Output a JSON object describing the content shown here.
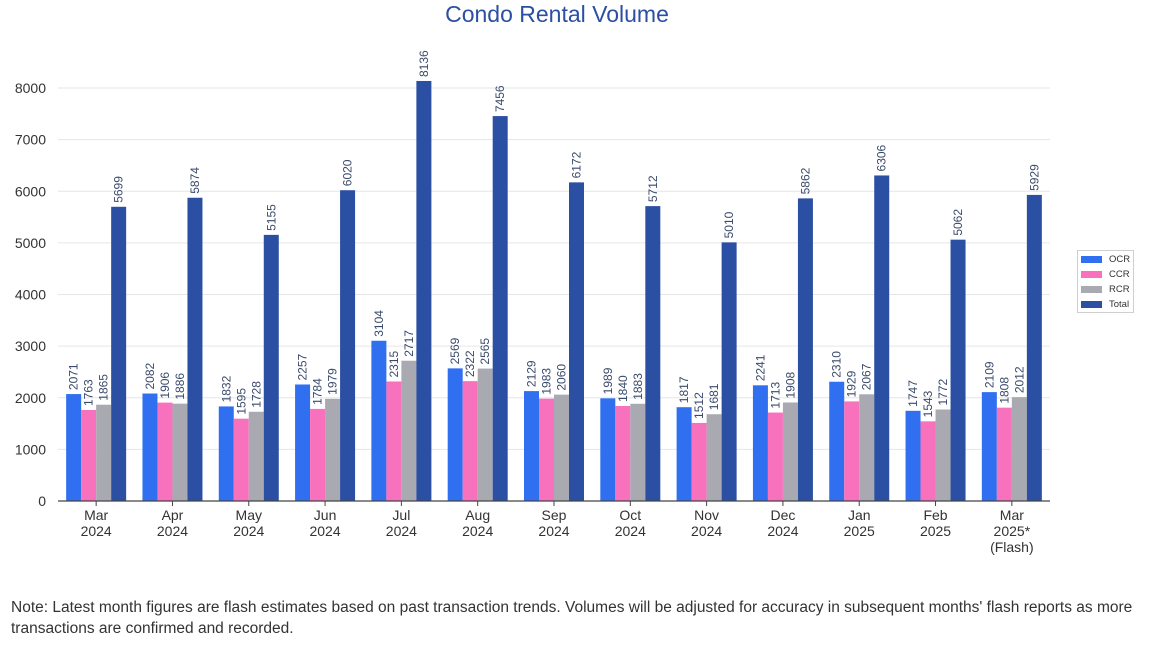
{
  "chart_data": {
    "type": "bar",
    "title": "Condo Rental Volume",
    "categories": [
      [
        "Mar",
        "2024"
      ],
      [
        "Apr",
        "2024"
      ],
      [
        "May",
        "2024"
      ],
      [
        "Jun",
        "2024"
      ],
      [
        "Jul",
        "2024"
      ],
      [
        "Aug",
        "2024"
      ],
      [
        "Sep",
        "2024"
      ],
      [
        "Oct",
        "2024"
      ],
      [
        "Nov",
        "2024"
      ],
      [
        "Dec",
        "2024"
      ],
      [
        "Jan",
        "2025"
      ],
      [
        "Feb",
        "2025"
      ],
      [
        "Mar",
        "2025*",
        "(Flash)"
      ]
    ],
    "series": [
      {
        "name": "OCR",
        "color": "#2f6ff0",
        "values": [
          2071,
          2082,
          1832,
          2257,
          3104,
          2569,
          2129,
          1989,
          1817,
          2241,
          2310,
          1747,
          2109
        ]
      },
      {
        "name": "CCR",
        "color": "#f771bc",
        "values": [
          1763,
          1906,
          1595,
          1784,
          2315,
          2322,
          1983,
          1840,
          1512,
          1713,
          1929,
          1543,
          1808
        ]
      },
      {
        "name": "RCR",
        "color": "#a9a9b1",
        "values": [
          1865,
          1886,
          1728,
          1979,
          2717,
          2565,
          2060,
          1883,
          1681,
          1908,
          2067,
          1772,
          2012
        ]
      },
      {
        "name": "Total",
        "color": "#2b4fa2",
        "values": [
          5699,
          5874,
          5155,
          6020,
          8136,
          7456,
          6172,
          5712,
          5010,
          5862,
          6306,
          5062,
          5929
        ]
      }
    ],
    "ylim": [
      0,
      8000
    ],
    "yticks": [
      0,
      1000,
      2000,
      3000,
      4000,
      5000,
      6000,
      7000,
      8000
    ],
    "grid": true,
    "legend_position": "right",
    "data_labels": true
  },
  "note": "Note: Latest month figures are flash estimates based on past transaction trends. Volumes will be adjusted for accuracy in subsequent months' flash reports as more transactions are confirmed and recorded."
}
